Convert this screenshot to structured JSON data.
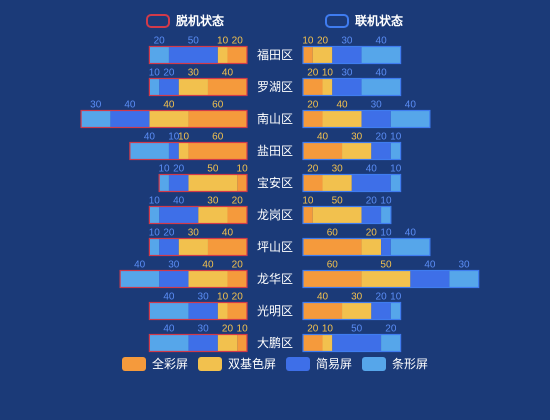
{
  "legend_top": [
    {
      "label": "脱机状态",
      "color": "#d13a4a"
    },
    {
      "label": "联机状态",
      "color": "#3f7cf0"
    }
  ],
  "legend_bottom": [
    {
      "label": "全彩屏",
      "color": "#f59a3c"
    },
    {
      "label": "双基色屏",
      "color": "#f2c14e"
    },
    {
      "label": "简易屏",
      "color": "#3e6fe8"
    },
    {
      "label": "条形屏",
      "color": "#56a6ea"
    }
  ],
  "chart_data": {
    "type": "bar",
    "orientation": "horizontal",
    "stacked": true,
    "categories": [
      "福田区",
      "罗湖区",
      "南山区",
      "盐田区",
      "宝安区",
      "龙岗区",
      "坪山区",
      "龙华区",
      "光明区",
      "大鹏区"
    ],
    "panels": [
      {
        "name": "脱机状态",
        "direction": "left",
        "series": [
          {
            "name": "全彩屏",
            "values": [
              20,
              40,
              60,
              60,
              10,
              20,
              40,
              20,
              20,
              10
            ]
          },
          {
            "name": "双基色屏",
            "values": [
              10,
              30,
              40,
              10,
              50,
              30,
              30,
              40,
              10,
              20
            ]
          },
          {
            "name": "简易屏",
            "values": [
              50,
              20,
              40,
              10,
              20,
              40,
              20,
              30,
              30,
              30
            ]
          },
          {
            "name": "条形屏",
            "values": [
              20,
              10,
              30,
              40,
              10,
              10,
              10,
              40,
              40,
              40
            ]
          }
        ]
      },
      {
        "name": "联机状态",
        "direction": "right",
        "series": [
          {
            "name": "全彩屏",
            "values": [
              10,
              20,
              20,
              40,
              20,
              10,
              60,
              60,
              40,
              20
            ]
          },
          {
            "name": "双基色屏",
            "values": [
              20,
              10,
              40,
              30,
              30,
              50,
              20,
              50,
              30,
              10
            ]
          },
          {
            "name": "简易屏",
            "values": [
              30,
              30,
              30,
              20,
              40,
              20,
              10,
              40,
              20,
              50
            ]
          },
          {
            "name": "条形屏",
            "values": [
              40,
              40,
              40,
              10,
              10,
              10,
              40,
              30,
              10,
              20
            ]
          }
        ]
      }
    ],
    "colors": {
      "全彩屏": "#f59a3c",
      "双基色屏": "#f2c14e",
      "简易屏": "#3e6fe8",
      "条形屏": "#56a6ea"
    },
    "outline_colors": {
      "脱机状态": "#d13a4a",
      "联机状态": "#3f7cf0"
    },
    "label_colors": {
      "全彩屏": "#f2c14e",
      "双基色屏": "#f2c14e",
      "简易屏": "#5b8df5",
      "条形屏": "#5b8df5"
    },
    "category_label_color": "#ffffff",
    "background": "#1b3a78"
  }
}
